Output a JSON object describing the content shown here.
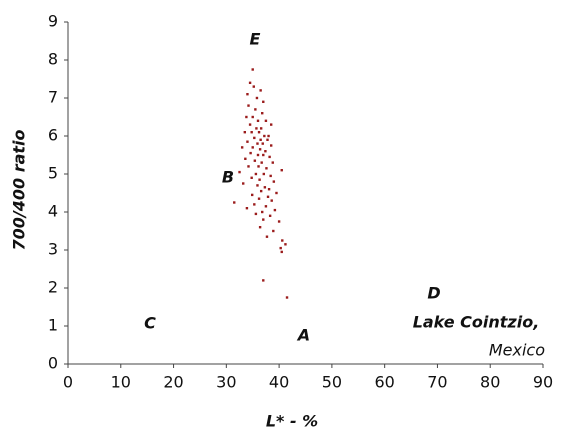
{
  "chart_data": {
    "type": "scatter",
    "x_label": "L* - %",
    "y_label": "700/400 ratio",
    "xlim": [
      0,
      90
    ],
    "ylim": [
      0,
      9
    ],
    "xticks": [
      0,
      10,
      20,
      30,
      40,
      50,
      60,
      70,
      80,
      90
    ],
    "yticks": [
      0,
      1,
      2,
      3,
      4,
      5,
      6,
      7,
      8,
      9
    ],
    "grid": false,
    "color": "#9b1c1c",
    "annotations": [
      "E",
      "B",
      "C",
      "A",
      "D",
      "Lake Cointzio,",
      "Mexico"
    ],
    "x": [
      35,
      34.5,
      35.2,
      34,
      36.5,
      35.8,
      37,
      34.2,
      35.5,
      36.8,
      33.8,
      35,
      36,
      37.5,
      38.5,
      34.5,
      35.7,
      36.6,
      33.5,
      34.8,
      36.2,
      37.2,
      38,
      35.3,
      36.5,
      37.8,
      34,
      35.9,
      36.9,
      38.5,
      33,
      35,
      36.4,
      37.4,
      34.6,
      36,
      37,
      38.2,
      33.6,
      35.4,
      36.7,
      38.8,
      34.2,
      36.1,
      37.6,
      40.5,
      32.5,
      35.6,
      37.1,
      38.4,
      34.8,
      36.3,
      39,
      33.2,
      35.9,
      37.3,
      38.1,
      36.6,
      39.5,
      34.9,
      37.9,
      36.2,
      38.6,
      31.5,
      35.3,
      37.5,
      33.9,
      39.2,
      36.8,
      35.6,
      38.3,
      37,
      40,
      36.4,
      38.9,
      37.7,
      40.6,
      41.2,
      40.3,
      40.5,
      37,
      41.5
    ],
    "y": [
      7.75,
      7.4,
      7.3,
      7.1,
      7.2,
      7.0,
      6.9,
      6.8,
      6.7,
      6.6,
      6.5,
      6.5,
      6.4,
      6.4,
      6.3,
      6.3,
      6.2,
      6.2,
      6.1,
      6.1,
      6.1,
      6.0,
      6.0,
      5.95,
      5.9,
      5.9,
      5.85,
      5.8,
      5.8,
      5.75,
      5.7,
      5.7,
      5.65,
      5.6,
      5.55,
      5.5,
      5.5,
      5.45,
      5.4,
      5.35,
      5.3,
      5.3,
      5.2,
      5.2,
      5.15,
      5.1,
      5.05,
      5.0,
      5.0,
      4.95,
      4.9,
      4.85,
      4.8,
      4.75,
      4.7,
      4.65,
      4.6,
      4.55,
      4.5,
      4.45,
      4.4,
      4.35,
      4.3,
      4.25,
      4.2,
      4.15,
      4.1,
      4.05,
      4.0,
      3.95,
      3.9,
      3.8,
      3.75,
      3.6,
      3.5,
      3.35,
      3.25,
      3.15,
      3.05,
      2.95,
      2.2,
      1.75
    ]
  }
}
